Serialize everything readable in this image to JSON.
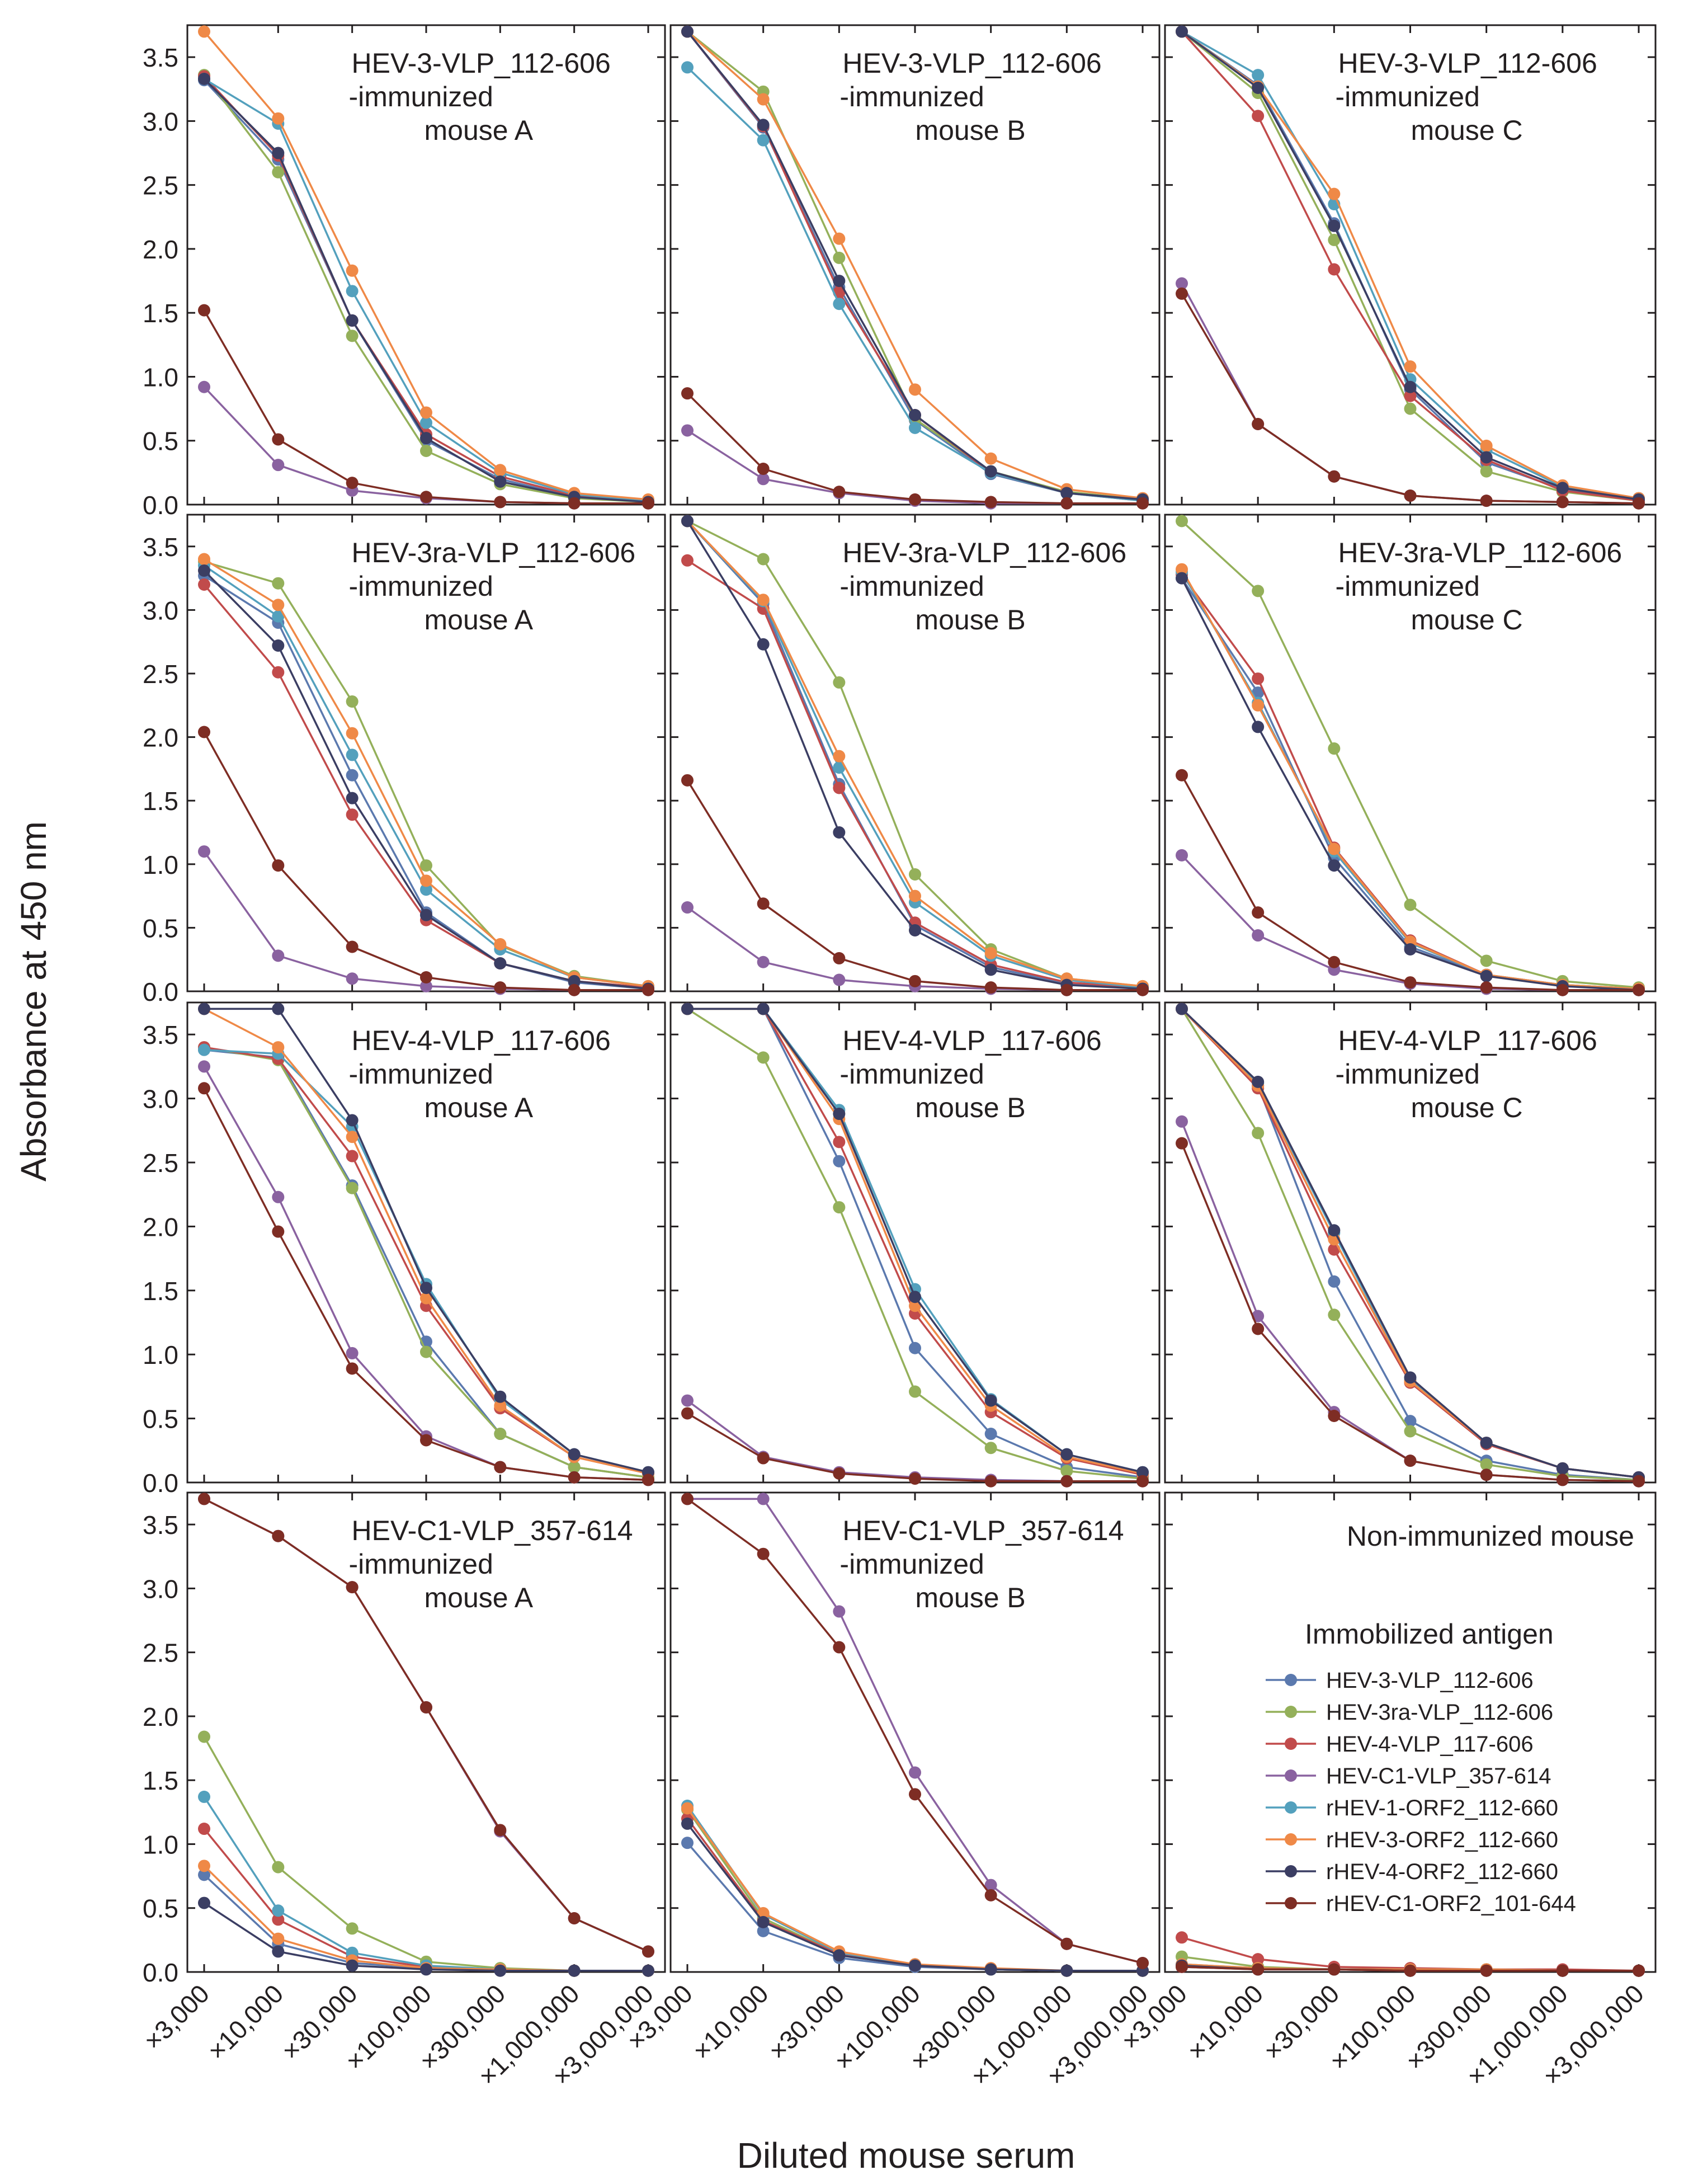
{
  "figure": {
    "ylabel": "Absorbance at 450 nm",
    "xlabel": "Diluted mouse serum",
    "legend_title": "Immobilized antigen"
  },
  "chart_data": {
    "type": "line",
    "categories": [
      "×3,000",
      "×10,000",
      "×30,000",
      "×100,000",
      "×300,000",
      "×1,000,000",
      "×3,000,000"
    ],
    "ylim": [
      0,
      3.75
    ],
    "yticks": [
      "0.0",
      "0.5",
      "1.0",
      "1.5",
      "2.0",
      "2.5",
      "3.0",
      "3.5"
    ],
    "series_meta": [
      {
        "name": "HEV-3-VLP_112-606",
        "color": "#5b79ae"
      },
      {
        "name": "HEV-3ra-VLP_112-606",
        "color": "#94b05a"
      },
      {
        "name": "HEV-4-VLP_117-606",
        "color": "#c14b4b"
      },
      {
        "name": "HEV-C1-VLP_357-614",
        "color": "#8a62a0"
      },
      {
        "name": "rHEV-1-ORF2_112-660",
        "color": "#53a0bd"
      },
      {
        "name": "rHEV-3-ORF2_112-660",
        "color": "#ef8947"
      },
      {
        "name": "rHEV-4-ORF2_112-660",
        "color": "#3b3e63"
      },
      {
        "name": "rHEV-C1-ORF2_101-644",
        "color": "#7e2d24"
      }
    ],
    "panels": [
      {
        "title": [
          "HEV-3-VLP_112-606",
          "-immunized",
          "mouse A"
        ],
        "values": [
          [
            3.32,
            2.7,
            1.44,
            0.5,
            0.2,
            0.06,
            0.02
          ],
          [
            3.36,
            2.6,
            1.32,
            0.42,
            0.16,
            0.05,
            0.02
          ],
          [
            3.35,
            2.73,
            1.44,
            0.55,
            0.22,
            0.07,
            0.02
          ],
          [
            0.92,
            0.31,
            0.11,
            0.05,
            0.02,
            0.01,
            0.01
          ],
          [
            3.33,
            2.98,
            1.67,
            0.64,
            0.25,
            0.08,
            0.03
          ],
          [
            3.7,
            3.02,
            1.83,
            0.72,
            0.27,
            0.09,
            0.04
          ],
          [
            3.33,
            2.75,
            1.44,
            0.52,
            0.18,
            0.06,
            0.02
          ],
          [
            1.52,
            0.51,
            0.17,
            0.06,
            0.02,
            0.01,
            0.01
          ]
        ]
      },
      {
        "title": [
          "HEV-3-VLP_112-606",
          "-immunized",
          "mouse B"
        ],
        "values": [
          [
            3.7,
            2.95,
            1.7,
            0.66,
            0.24,
            0.09,
            0.04
          ],
          [
            3.7,
            3.23,
            1.93,
            0.67,
            0.26,
            0.1,
            0.04
          ],
          [
            3.7,
            2.96,
            1.66,
            0.7,
            0.25,
            0.09,
            0.03
          ],
          [
            0.58,
            0.2,
            0.09,
            0.03,
            0.01,
            0.01,
            0.01
          ],
          [
            3.42,
            2.85,
            1.57,
            0.6,
            0.25,
            0.09,
            0.03
          ],
          [
            3.7,
            3.17,
            2.08,
            0.9,
            0.36,
            0.12,
            0.05
          ],
          [
            3.7,
            2.97,
            1.75,
            0.7,
            0.26,
            0.09,
            0.04
          ],
          [
            0.87,
            0.28,
            0.1,
            0.04,
            0.02,
            0.01,
            0.01
          ]
        ]
      },
      {
        "title": [
          "HEV-3-VLP_112-606",
          "-immunized",
          "mouse C"
        ],
        "values": [
          [
            3.7,
            3.28,
            2.2,
            0.9,
            0.33,
            0.12,
            0.04
          ],
          [
            3.7,
            3.22,
            2.07,
            0.75,
            0.26,
            0.1,
            0.03
          ],
          [
            3.7,
            3.04,
            1.84,
            0.85,
            0.35,
            0.11,
            0.03
          ],
          [
            1.73,
            0.63,
            0.22,
            0.07,
            0.03,
            0.02,
            0.01
          ],
          [
            3.7,
            3.36,
            2.35,
            0.98,
            0.43,
            0.14,
            0.05
          ],
          [
            3.7,
            3.27,
            2.43,
            1.08,
            0.46,
            0.15,
            0.05
          ],
          [
            3.7,
            3.26,
            2.18,
            0.92,
            0.37,
            0.13,
            0.04
          ],
          [
            1.65,
            0.63,
            0.22,
            0.07,
            0.03,
            0.02,
            0.01
          ]
        ]
      },
      {
        "title": [
          "HEV-3ra-VLP_112-606",
          "-immunized",
          "mouse A"
        ],
        "values": [
          [
            3.27,
            2.9,
            1.7,
            0.62,
            0.22,
            0.07,
            0.02
          ],
          [
            3.38,
            3.21,
            2.28,
            0.99,
            0.36,
            0.12,
            0.04
          ],
          [
            3.2,
            2.51,
            1.39,
            0.56,
            0.22,
            0.08,
            0.03
          ],
          [
            1.1,
            0.28,
            0.1,
            0.04,
            0.02,
            0.01,
            0.01
          ],
          [
            3.35,
            2.95,
            1.86,
            0.8,
            0.33,
            0.11,
            0.04
          ],
          [
            3.4,
            3.04,
            2.03,
            0.87,
            0.37,
            0.11,
            0.04
          ],
          [
            3.31,
            2.72,
            1.52,
            0.6,
            0.22,
            0.08,
            0.02
          ],
          [
            2.04,
            0.99,
            0.35,
            0.11,
            0.03,
            0.01,
            0.01
          ]
        ]
      },
      {
        "title": [
          "HEV-3ra-VLP_112-606",
          "-immunized",
          "mouse B"
        ],
        "values": [
          [
            3.7,
            3.05,
            1.63,
            0.52,
            0.19,
            0.06,
            0.02
          ],
          [
            3.7,
            3.4,
            2.43,
            0.92,
            0.33,
            0.1,
            0.04
          ],
          [
            3.39,
            3.01,
            1.6,
            0.54,
            0.21,
            0.07,
            0.03
          ],
          [
            0.66,
            0.23,
            0.09,
            0.04,
            0.02,
            0.01,
            0.01
          ],
          [
            3.7,
            3.07,
            1.76,
            0.7,
            0.28,
            0.09,
            0.03
          ],
          [
            3.7,
            3.08,
            1.85,
            0.75,
            0.3,
            0.1,
            0.04
          ],
          [
            3.7,
            2.73,
            1.25,
            0.48,
            0.17,
            0.05,
            0.02
          ],
          [
            1.66,
            0.69,
            0.26,
            0.08,
            0.03,
            0.01,
            0.01
          ]
        ]
      },
      {
        "title": [
          "HEV-3ra-VLP_112-606",
          "-immunized",
          "mouse C"
        ],
        "values": [
          [
            3.25,
            2.35,
            1.05,
            0.35,
            0.13,
            0.05,
            0.02
          ],
          [
            3.7,
            3.15,
            1.91,
            0.68,
            0.24,
            0.08,
            0.03
          ],
          [
            3.28,
            2.46,
            1.13,
            0.4,
            0.13,
            0.04,
            0.02
          ],
          [
            1.07,
            0.44,
            0.17,
            0.06,
            0.02,
            0.01,
            0.01
          ],
          [
            3.3,
            2.27,
            1.1,
            0.38,
            0.13,
            0.05,
            0.02
          ],
          [
            3.32,
            2.25,
            1.12,
            0.39,
            0.13,
            0.05,
            0.02
          ],
          [
            3.25,
            2.08,
            0.99,
            0.33,
            0.12,
            0.04,
            0.01
          ],
          [
            1.7,
            0.62,
            0.23,
            0.07,
            0.03,
            0.01,
            0.01
          ]
        ]
      },
      {
        "title": [
          "HEV-4-VLP_117-606",
          "-immunized",
          "mouse A"
        ],
        "values": [
          [
            3.38,
            3.32,
            2.32,
            1.1,
            0.38,
            0.12,
            0.04
          ],
          [
            3.4,
            3.3,
            2.3,
            1.02,
            0.38,
            0.12,
            0.04
          ],
          [
            3.4,
            3.31,
            2.55,
            1.38,
            0.58,
            0.2,
            0.07
          ],
          [
            3.25,
            2.23,
            1.01,
            0.36,
            0.12,
            0.04,
            0.02
          ],
          [
            3.38,
            3.35,
            2.78,
            1.55,
            0.65,
            0.22,
            0.08
          ],
          [
            3.7,
            3.4,
            2.7,
            1.44,
            0.6,
            0.2,
            0.07
          ],
          [
            3.7,
            3.7,
            2.83,
            1.52,
            0.67,
            0.22,
            0.08
          ],
          [
            3.08,
            1.96,
            0.89,
            0.33,
            0.12,
            0.04,
            0.02
          ]
        ]
      },
      {
        "title": [
          "HEV-4-VLP_117-606",
          "-immunized",
          "mouse B"
        ],
        "values": [
          [
            3.7,
            3.7,
            2.51,
            1.05,
            0.38,
            0.12,
            0.04
          ],
          [
            3.7,
            3.32,
            2.15,
            0.71,
            0.27,
            0.09,
            0.03
          ],
          [
            3.7,
            3.7,
            2.66,
            1.32,
            0.55,
            0.19,
            0.06
          ],
          [
            0.64,
            0.2,
            0.08,
            0.04,
            0.02,
            0.01,
            0.01
          ],
          [
            3.7,
            3.7,
            2.91,
            1.51,
            0.65,
            0.22,
            0.08
          ],
          [
            3.7,
            3.7,
            2.84,
            1.38,
            0.6,
            0.2,
            0.07
          ],
          [
            3.7,
            3.7,
            2.88,
            1.45,
            0.64,
            0.22,
            0.08
          ],
          [
            0.54,
            0.19,
            0.07,
            0.03,
            0.01,
            0.01,
            0.01
          ]
        ]
      },
      {
        "title": [
          "HEV-4-VLP_117-606",
          "-immunized",
          "mouse C"
        ],
        "values": [
          [
            3.7,
            3.1,
            1.57,
            0.48,
            0.17,
            0.06,
            0.02
          ],
          [
            3.7,
            2.73,
            1.31,
            0.4,
            0.14,
            0.05,
            0.02
          ],
          [
            3.7,
            3.08,
            1.82,
            0.78,
            0.3,
            0.11,
            0.04
          ],
          [
            2.82,
            1.3,
            0.55,
            0.17,
            0.06,
            0.02,
            0.01
          ],
          [
            3.7,
            3.12,
            1.95,
            0.8,
            0.31,
            0.11,
            0.04
          ],
          [
            3.7,
            3.1,
            1.9,
            0.79,
            0.31,
            0.11,
            0.04
          ],
          [
            3.7,
            3.13,
            1.97,
            0.82,
            0.31,
            0.11,
            0.04
          ],
          [
            2.65,
            1.2,
            0.52,
            0.17,
            0.06,
            0.02,
            0.01
          ]
        ]
      },
      {
        "title": [
          "HEV-C1-VLP_357-614",
          "-immunized",
          "mouse A"
        ],
        "values": [
          [
            0.76,
            0.22,
            0.07,
            0.03,
            0.02,
            0.01,
            0.01
          ],
          [
            1.84,
            0.82,
            0.34,
            0.08,
            0.03,
            0.01,
            0.01
          ],
          [
            1.12,
            0.41,
            0.12,
            0.04,
            0.02,
            0.01,
            0.01
          ],
          [
            3.7,
            3.41,
            3.01,
            2.07,
            1.1,
            0.42,
            0.16
          ],
          [
            1.37,
            0.48,
            0.15,
            0.05,
            0.02,
            0.01,
            0.01
          ],
          [
            0.83,
            0.26,
            0.09,
            0.03,
            0.02,
            0.01,
            0.01
          ],
          [
            0.54,
            0.16,
            0.05,
            0.02,
            0.01,
            0.01,
            0.01
          ],
          [
            3.7,
            3.41,
            3.01,
            2.07,
            1.11,
            0.42,
            0.16
          ]
        ]
      },
      {
        "title": [
          "HEV-C1-VLP_357-614",
          "-immunized",
          "mouse B"
        ],
        "values": [
          [
            1.01,
            0.32,
            0.11,
            0.04,
            0.02,
            0.01,
            0.01
          ],
          [
            1.27,
            0.42,
            0.14,
            0.05,
            0.02,
            0.01,
            0.01
          ],
          [
            1.2,
            0.4,
            0.14,
            0.05,
            0.02,
            0.01,
            0.01
          ],
          [
            3.7,
            3.7,
            2.82,
            1.56,
            0.68,
            0.22,
            0.07
          ],
          [
            1.3,
            0.45,
            0.15,
            0.06,
            0.02,
            0.01,
            0.01
          ],
          [
            1.28,
            0.46,
            0.16,
            0.06,
            0.03,
            0.01,
            0.01
          ],
          [
            1.16,
            0.39,
            0.13,
            0.05,
            0.02,
            0.01,
            0.01
          ],
          [
            3.7,
            3.27,
            2.54,
            1.39,
            0.6,
            0.22,
            0.07
          ]
        ]
      },
      {
        "title": [
          "Non-immunized mouse"
        ],
        "values": [
          [
            0.05,
            0.03,
            0.02,
            0.02,
            0.02,
            0.01,
            0.01
          ],
          [
            0.12,
            0.04,
            0.02,
            0.02,
            0.02,
            0.01,
            0.01
          ],
          [
            0.27,
            0.1,
            0.04,
            0.03,
            0.02,
            0.02,
            0.01
          ],
          [
            0.04,
            0.02,
            0.02,
            0.01,
            0.01,
            0.01,
            0.01
          ],
          [
            0.06,
            0.03,
            0.02,
            0.02,
            0.02,
            0.01,
            0.01
          ],
          [
            0.06,
            0.03,
            0.02,
            0.02,
            0.02,
            0.01,
            0.01
          ],
          [
            0.05,
            0.02,
            0.02,
            0.01,
            0.01,
            0.01,
            0.01
          ],
          [
            0.04,
            0.02,
            0.02,
            0.01,
            0.01,
            0.01,
            0.01
          ]
        ]
      }
    ]
  }
}
